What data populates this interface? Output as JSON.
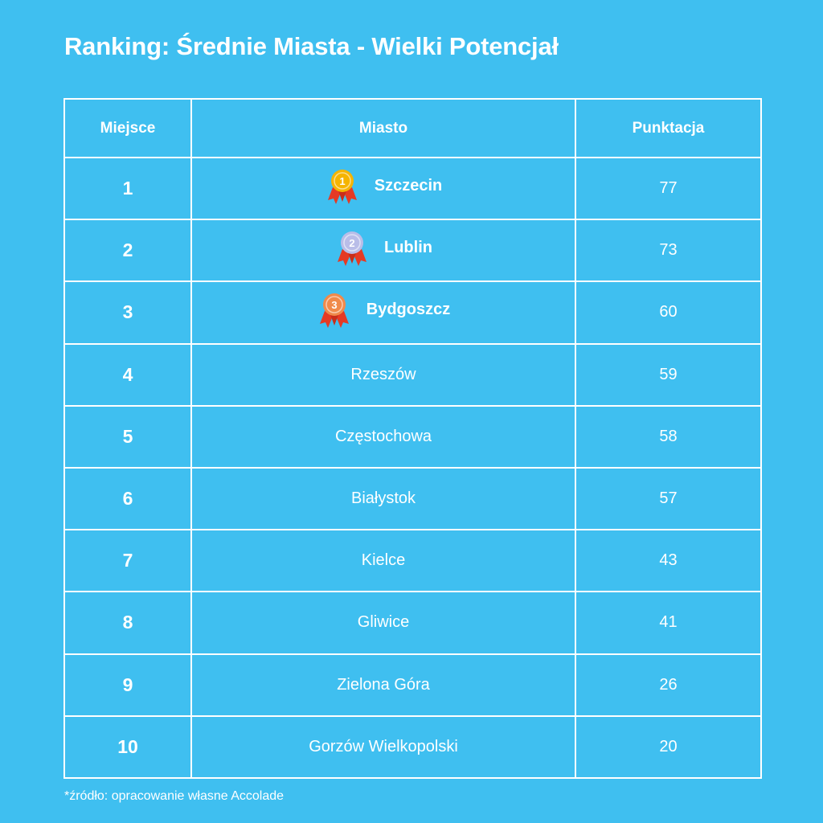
{
  "title": "Ranking: Średnie Miasta - Wielki Potencjał",
  "table": {
    "headers": [
      "Miejsce",
      "Miasto",
      "Punktacja"
    ],
    "rows": [
      {
        "place": "1",
        "city": "Szczecin",
        "score": "77",
        "medal": "gold-medal-icon",
        "medal_number": "1"
      },
      {
        "place": "2",
        "city": "Lublin",
        "score": "73",
        "medal": "silver-medal-icon",
        "medal_number": "2"
      },
      {
        "place": "3",
        "city": "Bydgoszcz",
        "score": "60",
        "medal": "bronze-medal-icon",
        "medal_number": "3"
      },
      {
        "place": "4",
        "city": "Rzeszów",
        "score": "59"
      },
      {
        "place": "5",
        "city": "Częstochowa",
        "score": "58"
      },
      {
        "place": "6",
        "city": "Białystok",
        "score": "57"
      },
      {
        "place": "7",
        "city": "Kielce",
        "score": "43"
      },
      {
        "place": "8",
        "city": "Gliwice",
        "score": "41"
      },
      {
        "place": "9",
        "city": "Zielona Góra",
        "score": "26"
      },
      {
        "place": "10",
        "city": "Gorzów Wielkopolski",
        "score": "20"
      }
    ]
  },
  "footnote": "*źródło: opracowanie własne Accolade",
  "colors": {
    "background": "#3fbff0",
    "text": "#ffffff",
    "gold": "#f5b400",
    "silver": "#b9bde8",
    "bronze": "#f08a4b",
    "ribbon": "#e53a24"
  }
}
